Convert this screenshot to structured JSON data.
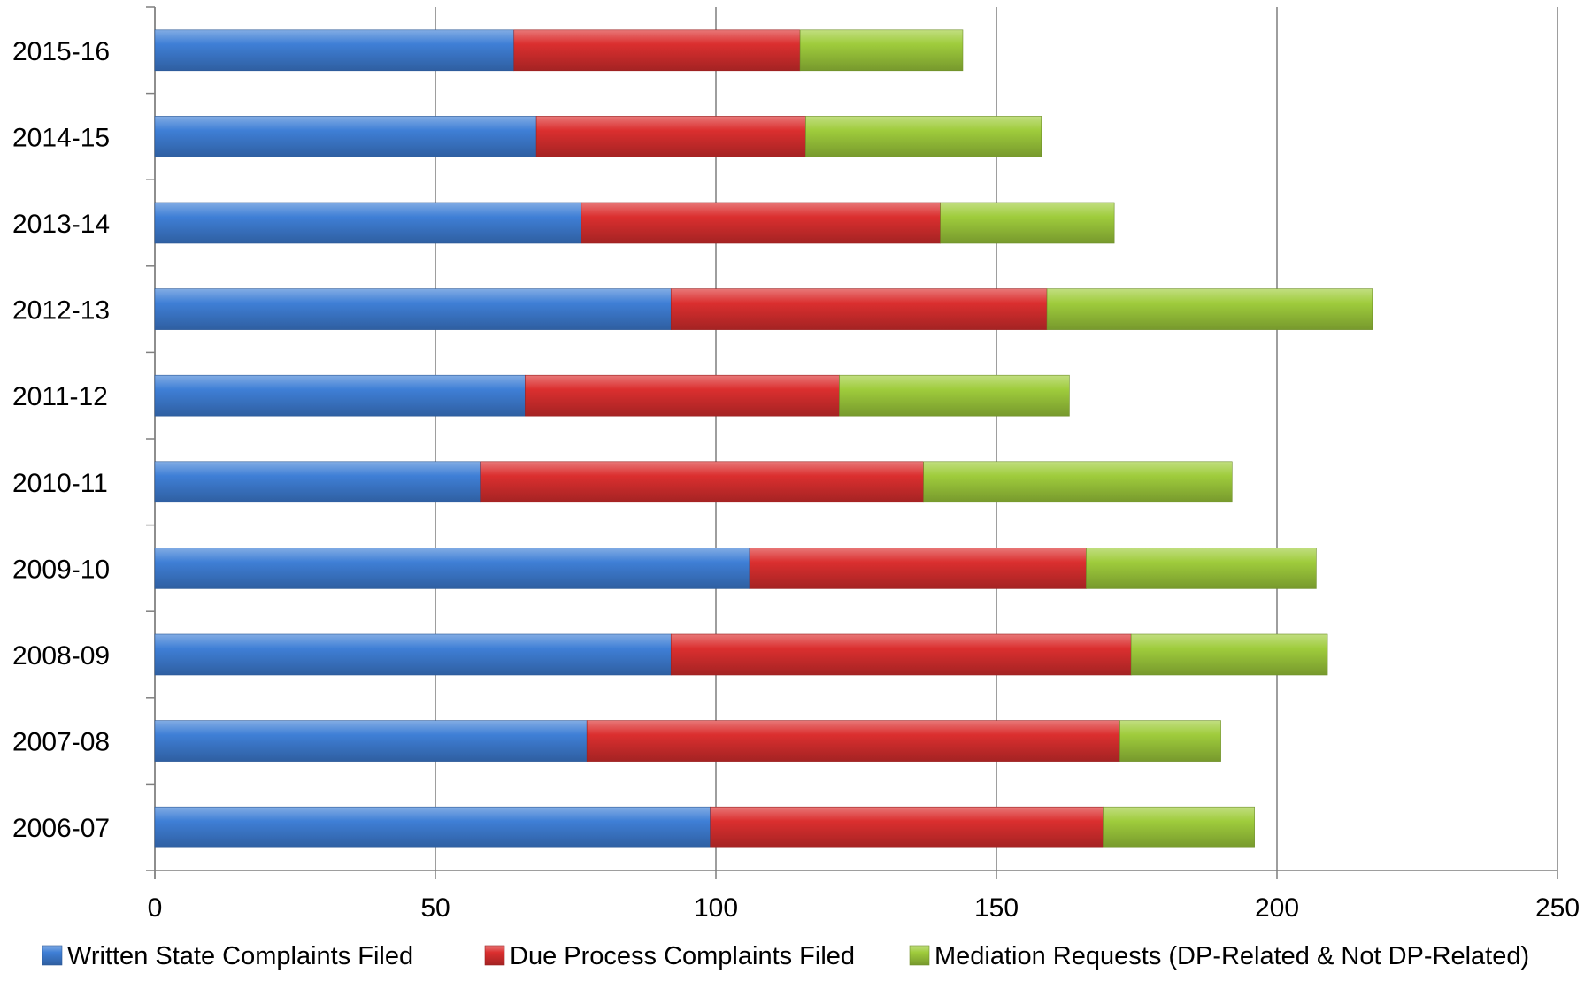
{
  "chart_data": {
    "type": "bar",
    "orientation": "horizontal",
    "stacked": true,
    "title": "",
    "xlabel": "",
    "ylabel": "",
    "categories": [
      "2015-16",
      "2014-15",
      "2013-14",
      "2012-13",
      "2011-12",
      "2010-11",
      "2009-10",
      "2008-09",
      "2007-08",
      "2006-07"
    ],
    "xlim": [
      0,
      250
    ],
    "xticks": [
      0,
      50,
      100,
      150,
      200,
      250
    ],
    "grid": "vertical",
    "legend_position": "bottom",
    "series": [
      {
        "name": "Written State Complaints Filed",
        "color": "#3f7fd6",
        "values": [
          64,
          68,
          76,
          92,
          66,
          58,
          106,
          92,
          77,
          99
        ]
      },
      {
        "name": "Due Process Complaints Filed",
        "color": "#db2f2f",
        "values": [
          51,
          48,
          64,
          67,
          56,
          79,
          60,
          82,
          95,
          70
        ]
      },
      {
        "name": "Mediation Requests (DP-Related & Not DP-Related)",
        "color": "#9fcc3c",
        "values": [
          29,
          42,
          31,
          58,
          41,
          55,
          41,
          35,
          18,
          27
        ]
      }
    ]
  }
}
